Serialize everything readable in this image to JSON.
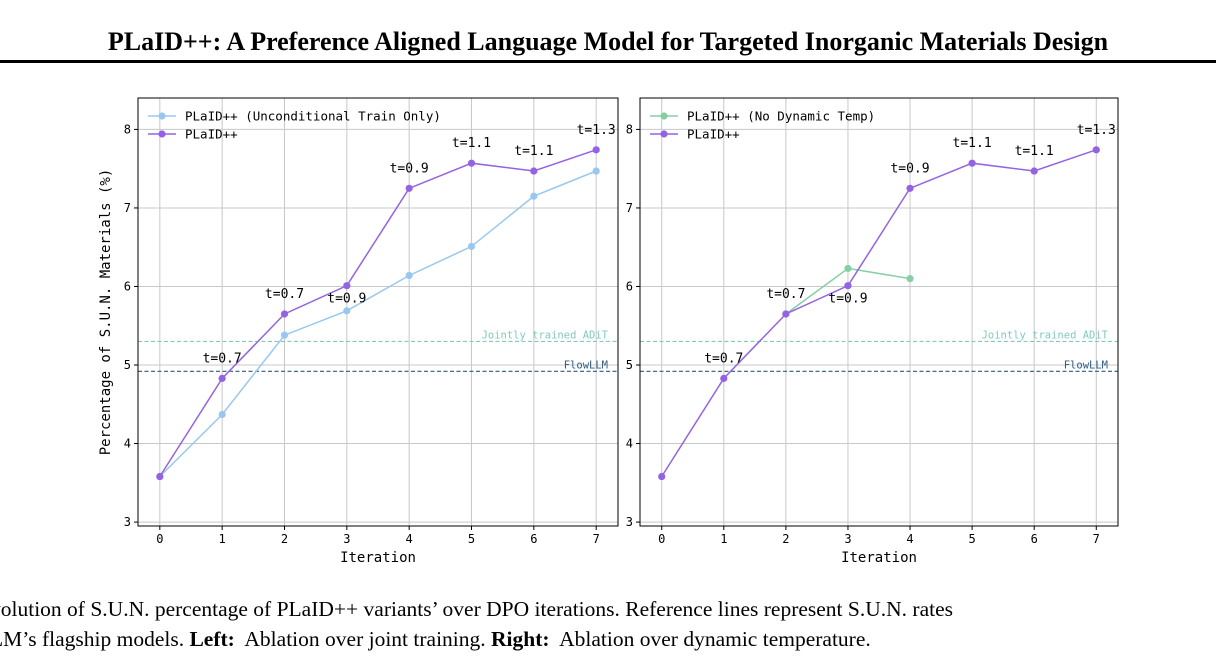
{
  "page": {
    "title": "PLaID++: A Preference Aligned Language Model for Targeted Inorganic Materials Design",
    "caption_line1": "volution of S.U.N. percentage of PLaID++ variants’ over DPO iterations. Reference lines represent S.U.N. rates",
    "caption_line2_start": "LM’s flagship models. ",
    "caption_left_label": "Left:",
    "caption_left_text": "  Ablation over joint training. ",
    "caption_right_label": "Right:",
    "caption_right_text": "  Ablation over dynamic temperature."
  },
  "colors": {
    "purple": "#9463e3",
    "lightblue": "#98c8f0",
    "green": "#86cfa5",
    "ref_adit": "#82c9bf",
    "ref_flowllm": "#2f5b7e",
    "grid": "#c8c8c8"
  },
  "chart_data": [
    {
      "type": "line",
      "panel": "left",
      "xlabel": "Iteration",
      "ylabel": "Percentage of S.U.N. Materials (%)",
      "xlim": [
        -0.35,
        7.35
      ],
      "ylim": [
        2.95,
        8.4
      ],
      "xticks": [
        0,
        1,
        2,
        3,
        4,
        5,
        6,
        7
      ],
      "yticks": [
        3,
        4,
        5,
        6,
        7,
        8
      ],
      "grid": true,
      "legend_position": "top-left",
      "x": [
        0,
        1,
        2,
        3,
        4,
        5,
        6,
        7
      ],
      "series": [
        {
          "name": "PLaID++ (Unconditional Train Only)",
          "color_key": "lightblue",
          "values": [
            3.58,
            4.37,
            5.38,
            5.69,
            6.14,
            6.51,
            7.15,
            7.47
          ]
        },
        {
          "name": "PLaID++",
          "color_key": "purple",
          "values": [
            3.58,
            4.83,
            5.65,
            6.01,
            7.25,
            7.57,
            7.47,
            7.74
          ]
        }
      ],
      "reference_lines": [
        {
          "label": "Jointly trained ADiT",
          "y": 5.3,
          "color_key": "ref_adit"
        },
        {
          "label": "FlowLLM",
          "y": 4.92,
          "color_key": "ref_flowllm"
        }
      ],
      "annotations": [
        {
          "text": "t=0.7",
          "x": 1,
          "y": 4.83,
          "placement": "above"
        },
        {
          "text": "t=0.7",
          "x": 2,
          "y": 5.65,
          "placement": "above"
        },
        {
          "text": "t=0.9",
          "x": 3,
          "y": 6.01,
          "placement": "below"
        },
        {
          "text": "t=0.9",
          "x": 4,
          "y": 7.25,
          "placement": "above"
        },
        {
          "text": "t=1.1",
          "x": 5,
          "y": 7.57,
          "placement": "above"
        },
        {
          "text": "t=1.1",
          "x": 6,
          "y": 7.47,
          "placement": "above"
        },
        {
          "text": "t=1.3",
          "x": 7,
          "y": 7.74,
          "placement": "above"
        }
      ]
    },
    {
      "type": "line",
      "panel": "right",
      "xlabel": "Iteration",
      "ylabel": "",
      "xlim": [
        -0.35,
        7.35
      ],
      "ylim": [
        2.95,
        8.4
      ],
      "xticks": [
        0,
        1,
        2,
        3,
        4,
        5,
        6,
        7
      ],
      "yticks": [
        3,
        4,
        5,
        6,
        7,
        8
      ],
      "grid": true,
      "legend_position": "top-left",
      "x": [
        0,
        1,
        2,
        3,
        4,
        5,
        6,
        7
      ],
      "series": [
        {
          "name": "PLaID++ (No Dynamic Temp)",
          "color_key": "green",
          "x": [
            2,
            3,
            4
          ],
          "values": [
            5.65,
            6.23,
            6.1
          ]
        },
        {
          "name": "PLaID++",
          "color_key": "purple",
          "values": [
            3.58,
            4.83,
            5.65,
            6.01,
            7.25,
            7.57,
            7.47,
            7.74
          ]
        }
      ],
      "reference_lines": [
        {
          "label": "Jointly trained ADiT",
          "y": 5.3,
          "color_key": "ref_adit"
        },
        {
          "label": "FlowLLM",
          "y": 4.92,
          "color_key": "ref_flowllm"
        }
      ],
      "annotations": [
        {
          "text": "t=0.7",
          "x": 1,
          "y": 4.83,
          "placement": "above"
        },
        {
          "text": "t=0.7",
          "x": 2,
          "y": 5.65,
          "placement": "above"
        },
        {
          "text": "t=0.9",
          "x": 3,
          "y": 6.01,
          "placement": "below"
        },
        {
          "text": "t=0.9",
          "x": 4,
          "y": 7.25,
          "placement": "above"
        },
        {
          "text": "t=1.1",
          "x": 5,
          "y": 7.57,
          "placement": "above"
        },
        {
          "text": "t=1.1",
          "x": 6,
          "y": 7.47,
          "placement": "above"
        },
        {
          "text": "t=1.3",
          "x": 7,
          "y": 7.74,
          "placement": "above"
        }
      ]
    }
  ]
}
